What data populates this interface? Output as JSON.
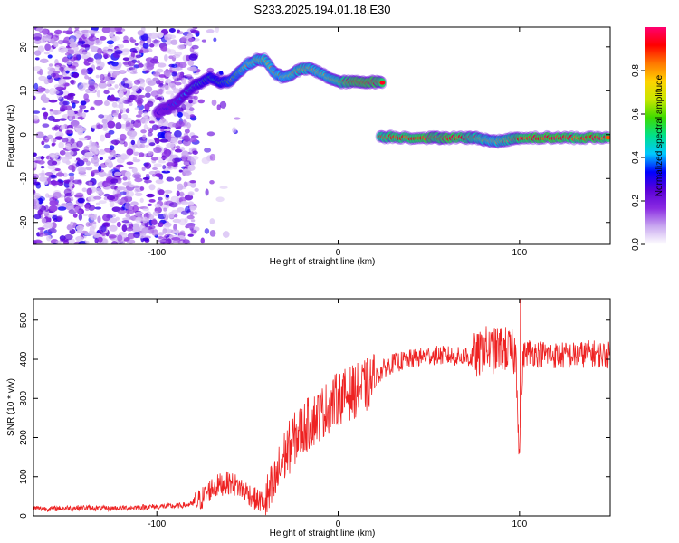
{
  "figure_title": "S233.2025.194.01.18.E30",
  "chart_data": [
    {
      "type": "heatmap",
      "title": "",
      "xlabel": "Height of straight line (km)",
      "ylabel": "Frequency (Hz)",
      "xlim": [
        -168,
        150
      ],
      "ylim": [
        -25,
        24.5
      ],
      "x_ticks": [
        -100,
        0,
        100
      ],
      "y_ticks": [
        -20,
        -10,
        0,
        10,
        20
      ],
      "grid": false,
      "colorbar": {
        "label": "Normalized spectral amplitude",
        "range": [
          0,
          1
        ],
        "ticks": [
          0.0,
          0.2,
          0.4,
          0.6,
          0.8
        ],
        "colors": [
          "#ffffff",
          "#c9a8f0",
          "#8a2be2",
          "#5a00d8",
          "#0000ff",
          "#00c8ff",
          "#00e08c",
          "#3cdc00",
          "#c8e600",
          "#ffd200",
          "#ff7800",
          "#ff0000",
          "#ff0070"
        ]
      },
      "noise_region": {
        "x_range": [
          -168,
          -78
        ],
        "y_range": [
          -25,
          24.5
        ],
        "level": "low"
      },
      "ridge_segments": [
        {
          "name": "",
          "x": [
            -100,
            -95,
            -90,
            -85,
            -80,
            -75,
            -70,
            -65,
            -60,
            -55,
            -50,
            -45,
            -40,
            -35,
            -30,
            -25,
            -20,
            -15,
            -10,
            -5,
            0,
            5,
            10,
            15,
            20,
            25
          ],
          "freq": [
            5,
            6,
            7,
            9,
            11,
            12,
            13,
            12,
            12,
            14,
            16,
            17,
            17,
            14,
            13,
            14,
            15,
            15,
            14,
            13,
            12,
            12,
            12,
            12,
            12,
            12
          ],
          "amplitude": [
            0.3,
            0.35,
            0.4,
            0.45,
            0.5,
            0.55,
            0.6,
            0.6,
            0.65,
            0.7,
            0.75,
            0.8,
            0.8,
            0.75,
            0.75,
            0.8,
            0.85,
            0.8,
            0.8,
            0.8,
            0.85,
            0.95,
            1.0,
            1.0,
            1.0,
            0.95
          ]
        },
        {
          "name": "",
          "x": [
            23,
            30,
            40,
            50,
            55,
            60,
            70,
            75,
            80,
            85,
            90,
            95,
            100,
            110,
            120,
            130,
            140,
            150
          ],
          "freq": [
            -0.5,
            -0.5,
            -0.7,
            -0.7,
            -0.7,
            -0.7,
            -0.7,
            -0.7,
            -1.0,
            -1.5,
            -1.5,
            -1.0,
            -0.7,
            -0.7,
            -0.7,
            -0.7,
            -0.7,
            -0.7
          ],
          "amplitude": [
            0.9,
            0.95,
            0.95,
            1.0,
            0.95,
            1.0,
            0.95,
            0.9,
            0.85,
            0.8,
            0.85,
            0.9,
            0.95,
            1.0,
            1.0,
            0.95,
            1.0,
            0.95
          ]
        }
      ]
    },
    {
      "type": "line",
      "title": "",
      "xlabel": "Height of straight line (km)",
      "ylabel": "SNR (10 * v/v)",
      "xlim": [
        -168,
        150
      ],
      "ylim": [
        0,
        555
      ],
      "x_ticks": [
        -100,
        0,
        100
      ],
      "y_ticks": [
        0,
        100,
        200,
        300,
        400,
        500
      ],
      "grid": false,
      "series": [
        {
          "name": "",
          "color": "#ee2222",
          "x": [
            -168,
            -160,
            -150,
            -140,
            -130,
            -120,
            -110,
            -100,
            -90,
            -80,
            -75,
            -70,
            -65,
            -60,
            -55,
            -50,
            -45,
            -40,
            -35,
            -30,
            -25,
            -20,
            -15,
            -10,
            -5,
            0,
            5,
            10,
            15,
            20,
            25,
            30,
            40,
            50,
            60,
            70,
            78,
            80,
            85,
            90,
            95,
            98,
            100,
            102,
            105,
            110,
            120,
            130,
            140,
            150
          ],
          "y": [
            20,
            18,
            20,
            21,
            19,
            20,
            22,
            24,
            25,
            30,
            45,
            70,
            80,
            85,
            75,
            60,
            40,
            35,
            80,
            150,
            190,
            220,
            240,
            260,
            280,
            300,
            310,
            320,
            330,
            350,
            375,
            390,
            400,
            410,
            410,
            405,
            410,
            430,
            420,
            430,
            420,
            410,
            160,
            410,
            420,
            415,
            410,
            410,
            415,
            410
          ]
        }
      ]
    }
  ]
}
